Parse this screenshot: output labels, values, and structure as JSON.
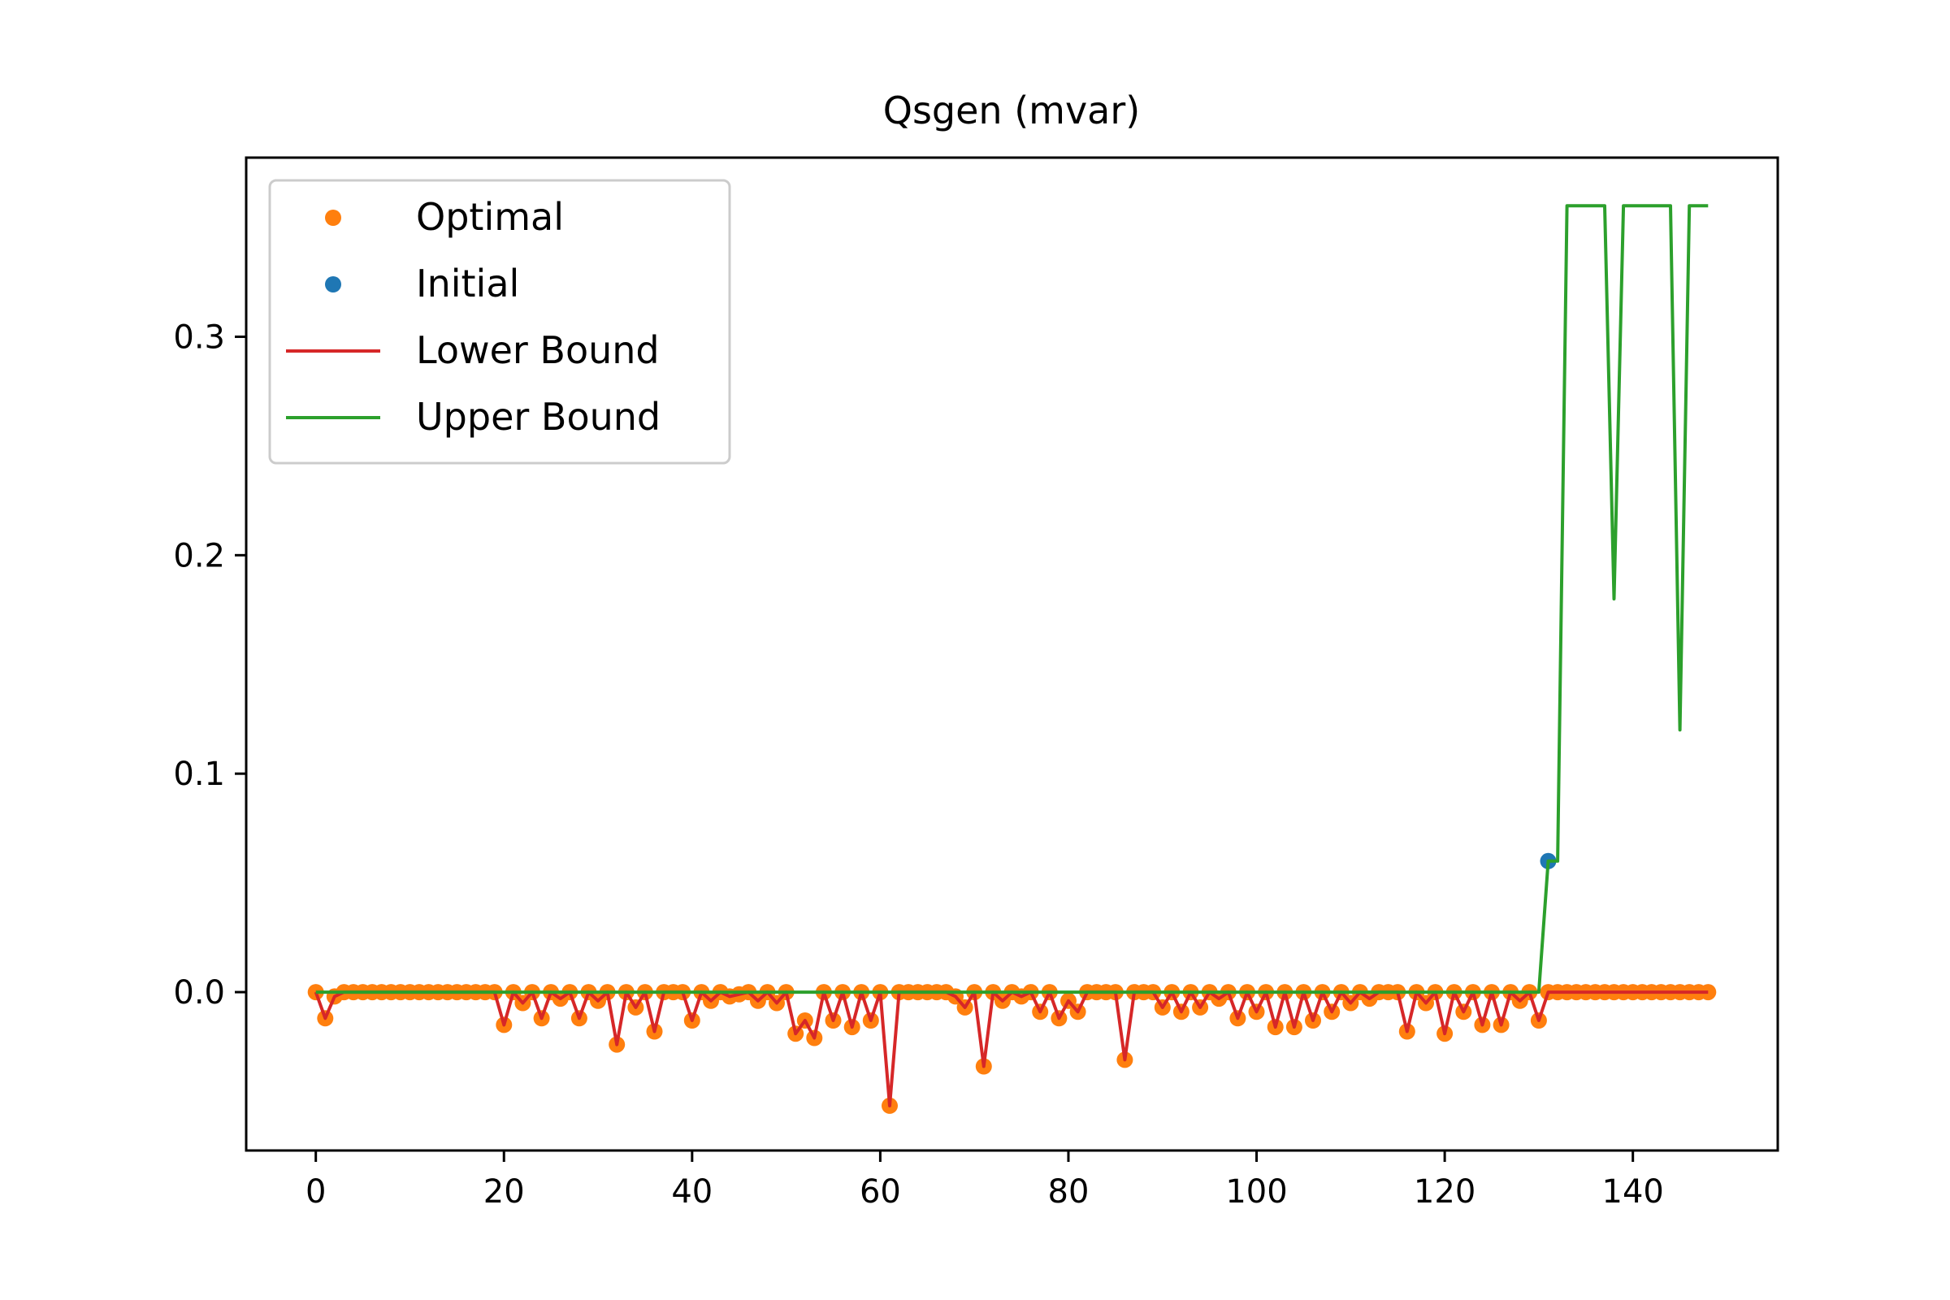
{
  "chart_data": {
    "type": "line",
    "title": "Qsgen (mvar)",
    "xlabel": "",
    "ylabel": "",
    "xlim": [
      -7.4,
      155.4
    ],
    "ylim": [
      -0.0725,
      0.382
    ],
    "x_ticks": [
      0,
      20,
      40,
      60,
      80,
      100,
      120,
      140
    ],
    "x_tick_labels": [
      "0",
      "20",
      "40",
      "60",
      "80",
      "100",
      "120",
      "140"
    ],
    "y_ticks": [
      0.0,
      0.1,
      0.2,
      0.3
    ],
    "y_tick_labels": [
      "0.0",
      "0.1",
      "0.2",
      "0.3"
    ],
    "grid": false,
    "legend_position": "top-left",
    "x": [
      0,
      1,
      2,
      3,
      4,
      5,
      6,
      7,
      8,
      9,
      10,
      11,
      12,
      13,
      14,
      15,
      16,
      17,
      18,
      19,
      20,
      21,
      22,
      23,
      24,
      25,
      26,
      27,
      28,
      29,
      30,
      31,
      32,
      33,
      34,
      35,
      36,
      37,
      38,
      39,
      40,
      41,
      42,
      43,
      44,
      45,
      46,
      47,
      48,
      49,
      50,
      51,
      52,
      53,
      54,
      55,
      56,
      57,
      58,
      59,
      60,
      61,
      62,
      63,
      64,
      65,
      66,
      67,
      68,
      69,
      70,
      71,
      72,
      73,
      74,
      75,
      76,
      77,
      78,
      79,
      80,
      81,
      82,
      83,
      84,
      85,
      86,
      87,
      88,
      89,
      90,
      91,
      92,
      93,
      94,
      95,
      96,
      97,
      98,
      99,
      100,
      101,
      102,
      103,
      104,
      105,
      106,
      107,
      108,
      109,
      110,
      111,
      112,
      113,
      114,
      115,
      116,
      117,
      118,
      119,
      120,
      121,
      122,
      123,
      124,
      125,
      126,
      127,
      128,
      129,
      130,
      131,
      132,
      133,
      134,
      135,
      136,
      137,
      138,
      139,
      140,
      141,
      142,
      143,
      144,
      145,
      146,
      147,
      148
    ],
    "series": [
      {
        "name": "Optimal",
        "kind": "points",
        "color": "#ff7f0e",
        "values": [
          0,
          -0.012,
          -0.002,
          0,
          0,
          0,
          0,
          0,
          0,
          0,
          0,
          0,
          0,
          0,
          0,
          0,
          0,
          0,
          0,
          0,
          -0.015,
          0,
          -0.005,
          0,
          -0.012,
          0,
          -0.003,
          0,
          -0.012,
          0,
          -0.004,
          0,
          -0.024,
          0,
          -0.007,
          0,
          -0.018,
          0,
          0,
          0,
          -0.013,
          0,
          -0.004,
          0,
          -0.002,
          -0.001,
          0,
          -0.004,
          0,
          -0.005,
          0,
          -0.019,
          -0.013,
          -0.021,
          0,
          -0.013,
          0,
          -0.016,
          0,
          -0.013,
          0,
          -0.052,
          0,
          0,
          0,
          0,
          0,
          0,
          -0.002,
          -0.007,
          0,
          -0.034,
          0,
          -0.004,
          0,
          -0.002,
          0,
          -0.009,
          0,
          -0.012,
          -0.004,
          -0.009,
          0,
          0,
          0,
          0,
          -0.031,
          0,
          0,
          0,
          -0.007,
          0,
          -0.009,
          0,
          -0.007,
          0,
          -0.003,
          0,
          -0.012,
          0,
          -0.009,
          0,
          -0.016,
          0,
          -0.016,
          0,
          -0.013,
          0,
          -0.009,
          0,
          -0.005,
          0,
          -0.003,
          0,
          0,
          0,
          -0.018,
          0,
          -0.005,
          0,
          -0.019,
          0,
          -0.009,
          0,
          -0.015,
          0,
          -0.015,
          0,
          -0.004,
          0,
          -0.013,
          0,
          0,
          0,
          0,
          0,
          0,
          0,
          0,
          0,
          0,
          0,
          0,
          0,
          0,
          0,
          0,
          0,
          0
        ]
      },
      {
        "name": "Initial",
        "kind": "points",
        "color": "#1f77b4",
        "x": [
          131
        ],
        "values": [
          0.06
        ]
      },
      {
        "name": "Lower Bound",
        "kind": "line",
        "color": "#d62728",
        "values": [
          0,
          -0.012,
          -0.002,
          0,
          0,
          0,
          0,
          0,
          0,
          0,
          0,
          0,
          0,
          0,
          0,
          0,
          0,
          0,
          0,
          0,
          -0.015,
          0,
          -0.005,
          0,
          -0.012,
          0,
          -0.003,
          0,
          -0.012,
          0,
          -0.004,
          0,
          -0.024,
          0,
          -0.007,
          0,
          -0.018,
          0,
          0,
          0,
          -0.013,
          0,
          -0.004,
          0,
          -0.002,
          -0.001,
          0,
          -0.004,
          0,
          -0.005,
          0,
          -0.019,
          -0.013,
          -0.021,
          0,
          -0.013,
          0,
          -0.016,
          0,
          -0.013,
          0,
          -0.052,
          0,
          0,
          0,
          0,
          0,
          0,
          -0.002,
          -0.007,
          0,
          -0.034,
          0,
          -0.004,
          0,
          -0.002,
          0,
          -0.009,
          0,
          -0.012,
          -0.004,
          -0.009,
          0,
          0,
          0,
          0,
          -0.031,
          0,
          0,
          0,
          -0.007,
          0,
          -0.009,
          0,
          -0.007,
          0,
          -0.003,
          0,
          -0.012,
          0,
          -0.009,
          0,
          -0.016,
          0,
          -0.016,
          0,
          -0.013,
          0,
          -0.009,
          0,
          -0.005,
          0,
          -0.003,
          0,
          0,
          0,
          -0.018,
          0,
          -0.005,
          0,
          -0.019,
          0,
          -0.009,
          0,
          -0.015,
          0,
          -0.015,
          0,
          -0.004,
          0,
          -0.013,
          0,
          0,
          0,
          0,
          0,
          0,
          0,
          0,
          0,
          0,
          0,
          0,
          0,
          0,
          0,
          0,
          0,
          0
        ]
      },
      {
        "name": "Upper Bound",
        "kind": "line",
        "color": "#2ca02c",
        "values": [
          0,
          0,
          0,
          0,
          0,
          0,
          0,
          0,
          0,
          0,
          0,
          0,
          0,
          0,
          0,
          0,
          0,
          0,
          0,
          0,
          0,
          0,
          0,
          0,
          0,
          0,
          0,
          0,
          0,
          0,
          0,
          0,
          0,
          0,
          0,
          0,
          0,
          0,
          0,
          0,
          0,
          0,
          0,
          0,
          0,
          0,
          0,
          0,
          0,
          0,
          0,
          0,
          0,
          0,
          0,
          0,
          0,
          0,
          0,
          0,
          0,
          0,
          0,
          0,
          0,
          0,
          0,
          0,
          0,
          0,
          0,
          0,
          0,
          0,
          0,
          0,
          0,
          0,
          0,
          0,
          0,
          0,
          0,
          0,
          0,
          0,
          0,
          0,
          0,
          0,
          0,
          0,
          0,
          0,
          0,
          0,
          0,
          0,
          0,
          0,
          0,
          0,
          0,
          0,
          0,
          0,
          0,
          0,
          0,
          0,
          0,
          0,
          0,
          0,
          0,
          0,
          0,
          0,
          0,
          0,
          0,
          0,
          0,
          0,
          0,
          0,
          0,
          0,
          0,
          0,
          0,
          0.06,
          0.06,
          0.36,
          0.36,
          0.36,
          0.36,
          0.36,
          0.18,
          0.36,
          0.36,
          0.36,
          0.36,
          0.36,
          0.36,
          0.12,
          0.36,
          0.36,
          0.36
        ]
      }
    ]
  }
}
